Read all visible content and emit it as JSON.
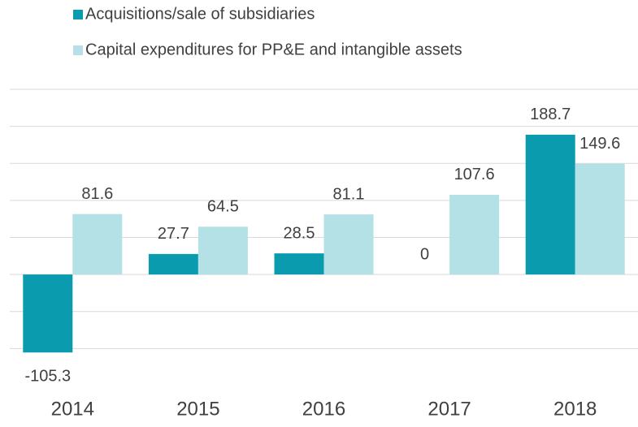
{
  "chart_data": {
    "type": "bar",
    "categories": [
      "2014",
      "2015",
      "2016",
      "2017",
      "2018"
    ],
    "series": [
      {
        "name": "Acquisitions/sale of subsidiaries",
        "color": "#0a9cae",
        "values": [
          -105.3,
          27.7,
          28.5,
          0,
          188.7
        ]
      },
      {
        "name": "Capital expenditures for PP&E and intangible assets",
        "color": "#b3e1e6",
        "values": [
          81.6,
          64.5,
          81.1,
          107.6,
          149.6
        ]
      }
    ],
    "ylim": [
      -150,
      250
    ],
    "yticks": [
      -100,
      -50,
      0,
      50,
      100,
      150,
      200,
      250
    ],
    "grid": true
  }
}
